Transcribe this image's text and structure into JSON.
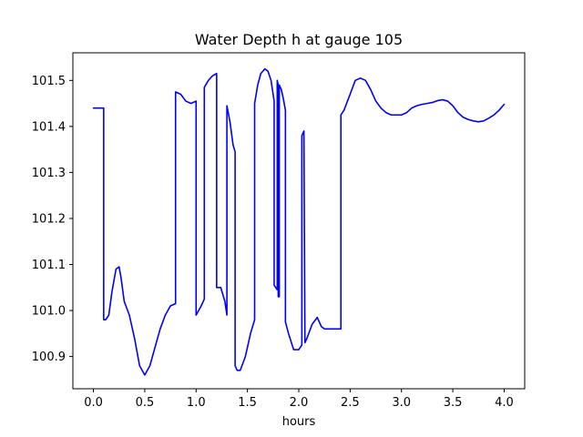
{
  "chart_data": {
    "type": "line",
    "title": "Water Depth h at gauge 105",
    "xlabel": "hours",
    "ylabel": "",
    "xlim": [
      -0.2,
      4.2
    ],
    "ylim": [
      100.83,
      101.56
    ],
    "x_ticks": [
      0.0,
      0.5,
      1.0,
      1.5,
      2.0,
      2.5,
      3.0,
      3.5,
      4.0
    ],
    "x_tick_labels": [
      "0.0",
      "0.5",
      "1.0",
      "1.5",
      "2.0",
      "2.5",
      "3.0",
      "3.5",
      "4.0"
    ],
    "y_ticks": [
      100.9,
      101.0,
      101.1,
      101.2,
      101.3,
      101.4,
      101.5
    ],
    "y_tick_labels": [
      "100.9",
      "101.0",
      "101.1",
      "101.2",
      "101.3",
      "101.4",
      "101.5"
    ],
    "grid": false,
    "line_color": "#0000ff",
    "series": [
      {
        "x": [
          0.0,
          0.05,
          0.1,
          0.1,
          0.12,
          0.15,
          0.18,
          0.22,
          0.25,
          0.27,
          0.3,
          0.35,
          0.4,
          0.45,
          0.5,
          0.55,
          0.6,
          0.65,
          0.7,
          0.75,
          0.8,
          0.8,
          0.85,
          0.9,
          0.95,
          1.0,
          1.0,
          1.05,
          1.08,
          1.08,
          1.12,
          1.16,
          1.2,
          1.2,
          1.24,
          1.28,
          1.3,
          1.3,
          1.33,
          1.36,
          1.38,
          1.38,
          1.4,
          1.43,
          1.48,
          1.53,
          1.57,
          1.57,
          1.6,
          1.63,
          1.67,
          1.7,
          1.73,
          1.76,
          1.76,
          1.79,
          1.79,
          1.8,
          1.8,
          1.81,
          1.81,
          1.83,
          1.85,
          1.87,
          1.87,
          1.9,
          1.95,
          2.0,
          2.03,
          2.03,
          2.05,
          2.05,
          2.06,
          2.08,
          2.13,
          2.18,
          2.22,
          2.25,
          2.28,
          2.33,
          2.38,
          2.41,
          2.41,
          2.44,
          2.5,
          2.55,
          2.6,
          2.65,
          2.7,
          2.75,
          2.8,
          2.85,
          2.9,
          2.95,
          3.0,
          3.05,
          3.1,
          3.15,
          3.2,
          3.25,
          3.3,
          3.35,
          3.4,
          3.45,
          3.5,
          3.55,
          3.6,
          3.65,
          3.7,
          3.75,
          3.8,
          3.85,
          3.9,
          3.95,
          4.0
        ],
        "y": [
          101.44,
          101.44,
          101.44,
          100.98,
          100.98,
          100.99,
          101.04,
          101.09,
          101.095,
          101.07,
          101.02,
          100.99,
          100.94,
          100.88,
          100.86,
          100.88,
          100.92,
          100.96,
          100.99,
          101.01,
          101.015,
          101.475,
          101.47,
          101.455,
          101.45,
          101.455,
          100.99,
          101.01,
          101.025,
          101.485,
          101.5,
          101.51,
          101.515,
          101.05,
          101.05,
          101.02,
          100.99,
          101.445,
          101.41,
          101.36,
          101.345,
          100.88,
          100.87,
          100.87,
          100.9,
          100.95,
          100.98,
          101.45,
          101.49,
          101.515,
          101.525,
          101.52,
          101.5,
          101.455,
          101.055,
          101.045,
          101.5,
          101.49,
          101.03,
          101.03,
          101.49,
          101.48,
          101.46,
          101.435,
          100.975,
          100.95,
          100.915,
          100.915,
          100.925,
          101.38,
          101.39,
          101.39,
          100.93,
          100.94,
          100.97,
          100.985,
          100.965,
          100.96,
          100.96,
          100.96,
          100.96,
          100.96,
          101.425,
          101.435,
          101.47,
          101.5,
          101.505,
          101.5,
          101.48,
          101.455,
          101.44,
          101.43,
          101.425,
          101.425,
          101.425,
          101.43,
          101.44,
          101.445,
          101.448,
          101.45,
          101.452,
          101.456,
          101.458,
          101.455,
          101.445,
          101.43,
          101.42,
          101.415,
          101.412,
          101.41,
          101.412,
          101.418,
          101.425,
          101.435,
          101.448
        ]
      }
    ]
  }
}
